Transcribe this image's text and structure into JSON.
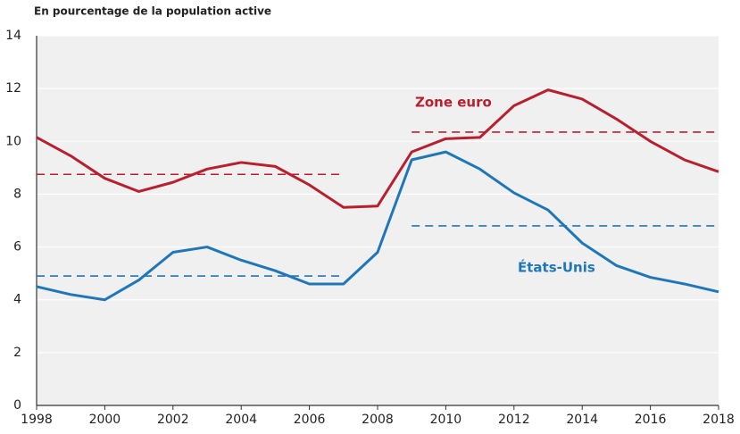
{
  "chart_data": {
    "type": "line",
    "subtitle": "En pourcentage de la population active",
    "x": [
      1998,
      1999,
      2000,
      2001,
      2002,
      2003,
      2004,
      2005,
      2006,
      2007,
      2008,
      2009,
      2010,
      2011,
      2012,
      2013,
      2014,
      2015,
      2016,
      2017,
      2018
    ],
    "series": [
      {
        "name": "Zone euro",
        "color": "#b8202f",
        "values": [
          10.15,
          9.45,
          8.6,
          8.1,
          8.45,
          8.95,
          9.2,
          9.05,
          8.35,
          7.5,
          7.55,
          9.6,
          10.1,
          10.15,
          11.35,
          11.95,
          11.6,
          10.85,
          10.0,
          9.3,
          8.85
        ]
      },
      {
        "name": "États-Unis",
        "color": "#1f77b8",
        "values": [
          4.5,
          4.2,
          4.0,
          4.75,
          5.8,
          6.0,
          5.5,
          5.1,
          4.6,
          4.6,
          5.8,
          9.3,
          9.6,
          8.95,
          8.05,
          7.4,
          6.15,
          5.3,
          4.85,
          4.6,
          4.3
        ]
      }
    ],
    "reference_lines": [
      {
        "x": [
          1998,
          2007
        ],
        "value": 8.75,
        "color": "#b8202f"
      },
      {
        "x": [
          2009,
          2018
        ],
        "value": 10.35,
        "color": "#b8202f"
      },
      {
        "x": [
          1998,
          2007
        ],
        "value": 4.9,
        "color": "#1f77b8"
      },
      {
        "x": [
          2009,
          2018
        ],
        "value": 6.8,
        "color": "#1f77b8"
      }
    ],
    "xlim": [
      1998,
      2018
    ],
    "xticks": [
      1998,
      2000,
      2002,
      2004,
      2006,
      2008,
      2010,
      2012,
      2014,
      2016,
      2018
    ],
    "ylim": [
      0,
      14
    ],
    "yticks": [
      0,
      2,
      4,
      6,
      8,
      10,
      12,
      14
    ],
    "grid": true
  }
}
